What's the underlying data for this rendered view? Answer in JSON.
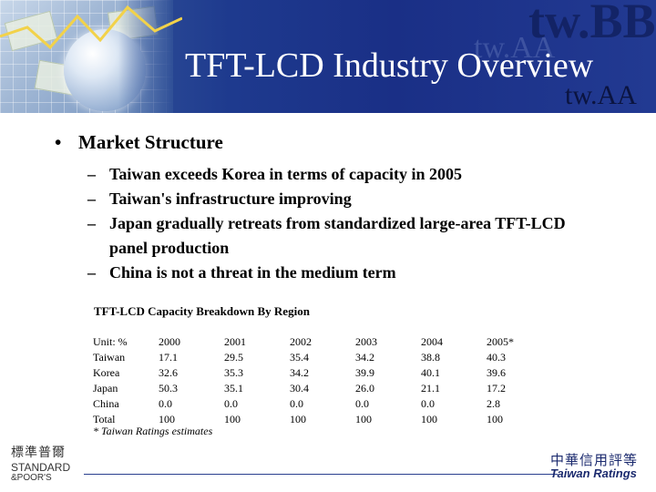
{
  "header": {
    "title": "TFT-LCD Industry Overview",
    "watermark_big": "tw.BB",
    "watermark_mid": "tw.AA",
    "watermark_small": "tw.AA"
  },
  "body": {
    "main_bullet": "Market Structure",
    "sub_bullets": [
      "Taiwan exceeds Korea in terms of capacity in 2005",
      "Taiwan's infrastructure improving",
      "Japan gradually retreats from standardized large-area TFT-LCD panel production",
      "China is not a threat in the medium term"
    ]
  },
  "table": {
    "title": "TFT-LCD Capacity Breakdown By Region",
    "header": [
      "Unit: %",
      "2000",
      "2001",
      "2002",
      "2003",
      "2004",
      "2005*"
    ],
    "rows": [
      [
        "Taiwan",
        "17.1",
        "29.5",
        "35.4",
        "34.2",
        "38.8",
        "40.3"
      ],
      [
        "Korea",
        "32.6",
        "35.3",
        "34.2",
        "39.9",
        "40.1",
        "39.6"
      ],
      [
        "Japan",
        "50.3",
        "35.1",
        "30.4",
        "26.0",
        "21.1",
        "17.2"
      ],
      [
        "China",
        "0.0",
        "0.0",
        "0.0",
        "0.0",
        "0.0",
        "2.8"
      ],
      [
        "Total",
        "100",
        "100",
        "100",
        "100",
        "100",
        "100"
      ]
    ],
    "footnote": "* Taiwan Ratings estimates"
  },
  "footer": {
    "sp_cjk": "標準普爾",
    "sp_line1": "STANDARD",
    "sp_line2": "&POOR'S",
    "tr_cjk": "中華信用評等",
    "tr_name": "Taiwan Ratings"
  },
  "colors": {
    "banner": "#1e3a8e",
    "title_text": "#ffffff",
    "logo_blue": "#1b2a6e"
  }
}
